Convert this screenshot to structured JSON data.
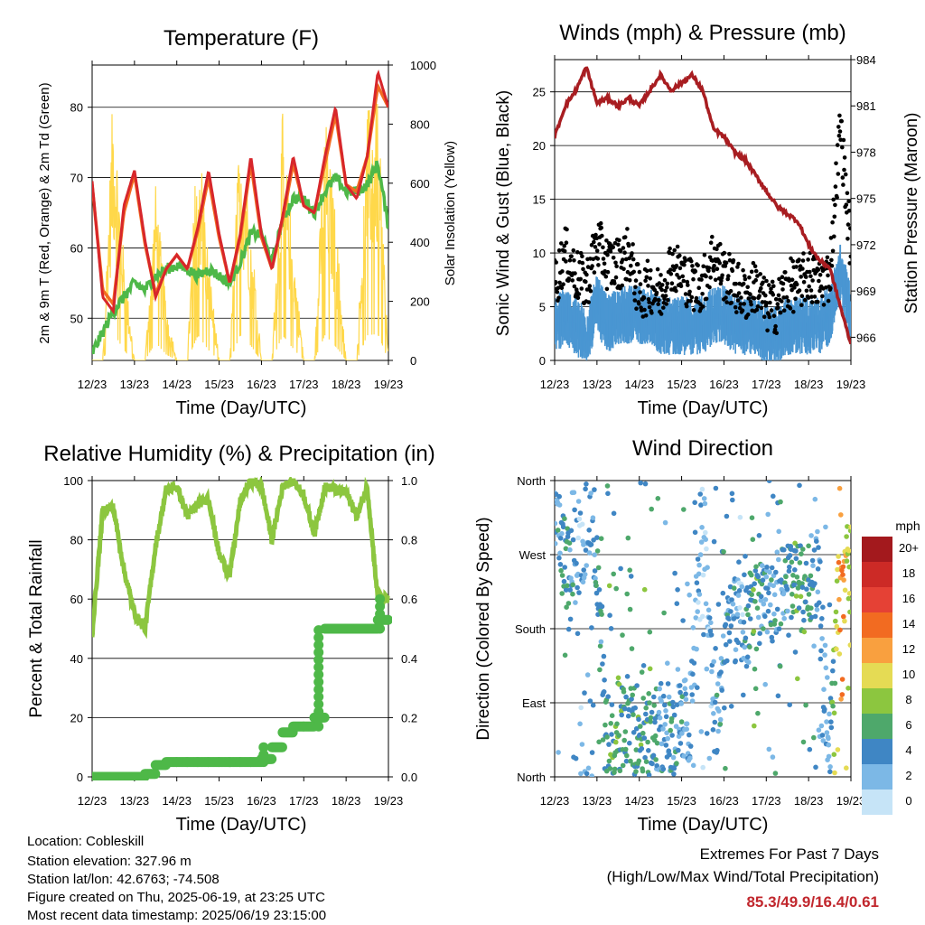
{
  "chart_data": [
    {
      "type": "line",
      "title": "Temperature (F)",
      "xlabel": "Time (Day/UTC)",
      "ylabel": "2m & 9m T (Red, Orange) & 2m Td (Green)",
      "y2label": "Solar Insolation (Yellow)",
      "ylim": [
        44,
        86
      ],
      "y2lim": [
        0,
        1000
      ],
      "yticks": [
        50,
        60,
        70,
        80
      ],
      "y2ticks": [
        0,
        200,
        400,
        600,
        800,
        1000
      ],
      "grid": true,
      "categories": [
        "12/23",
        "13/23",
        "14/23",
        "15/23",
        "16/23",
        "17/23",
        "18/23",
        "19/23"
      ],
      "x": [
        12.0,
        12.25,
        12.5,
        12.75,
        13.0,
        13.25,
        13.5,
        13.75,
        14.0,
        14.25,
        14.5,
        14.75,
        15.0,
        15.25,
        15.5,
        15.75,
        16.0,
        16.25,
        16.5,
        16.75,
        17.0,
        17.25,
        17.5,
        17.75,
        18.0,
        18.25,
        18.5,
        18.75,
        19.0
      ],
      "series": [
        {
          "name": "2m T",
          "color": "#d7262b",
          "axis": "y",
          "values": [
            69.5,
            53.0,
            51.0,
            66.0,
            71.0,
            61.0,
            53.0,
            57.0,
            59.0,
            57.0,
            63.0,
            71.0,
            62.0,
            55.0,
            62.0,
            73.0,
            62.0,
            57.0,
            64.5,
            73.0,
            66.0,
            65.0,
            73.0,
            80.0,
            69.0,
            67.0,
            73.0,
            85.0,
            80.0
          ]
        },
        {
          "name": "9m T",
          "color": "#f26b21",
          "axis": "y",
          "values": [
            69.0,
            54.0,
            52.0,
            65.0,
            70.5,
            60.5,
            53.5,
            57.0,
            59.0,
            57.0,
            62.5,
            70.0,
            61.5,
            55.0,
            61.5,
            72.0,
            61.5,
            57.0,
            64.0,
            72.0,
            66.0,
            65.0,
            72.0,
            79.0,
            69.0,
            68.0,
            73.0,
            83.0,
            80.0
          ]
        },
        {
          "name": "2m Td",
          "color": "#4eb848",
          "axis": "y",
          "values": [
            45.0,
            48.0,
            51.0,
            53.0,
            55.0,
            54.0,
            56.0,
            57.0,
            57.5,
            57.0,
            56.0,
            57.0,
            56.0,
            55.0,
            58.0,
            62.0,
            62.0,
            58.0,
            64.0,
            67.0,
            67.0,
            65.0,
            68.0,
            70.0,
            68.0,
            68.0,
            69.0,
            72.0,
            63.0
          ]
        },
        {
          "name": "Solar Insolation",
          "color": "#ffd84a",
          "axis": "y2",
          "values": [
            0,
            0,
            950,
            350,
            0,
            0,
            600,
            200,
            0,
            0,
            850,
            350,
            0,
            0,
            850,
            500,
            0,
            0,
            850,
            400,
            0,
            0,
            850,
            500,
            0,
            0,
            850,
            900,
            0
          ]
        }
      ]
    },
    {
      "type": "scatter",
      "title": "Winds (mph) & Pressure (mb)",
      "xlabel": "Time (Day/UTC)",
      "ylabel": "Sonic Wind & Gust (Blue, Black)",
      "y2label": "Station Pressure (Maroon)",
      "ylim": [
        0,
        28
      ],
      "y2lim": [
        964.5,
        984
      ],
      "yticks": [
        0,
        5,
        10,
        15,
        20,
        25
      ],
      "y2ticks": [
        966,
        969,
        972,
        975,
        978,
        981,
        984
      ],
      "grid": true,
      "categories": [
        "12/23",
        "13/23",
        "14/23",
        "15/23",
        "16/23",
        "17/23",
        "18/23",
        "19/23"
      ],
      "x": [
        12.0,
        12.25,
        12.5,
        12.75,
        13.0,
        13.25,
        13.5,
        13.75,
        14.0,
        14.25,
        14.5,
        14.75,
        15.0,
        15.25,
        15.5,
        15.75,
        16.0,
        16.25,
        16.5,
        16.75,
        17.0,
        17.25,
        17.5,
        17.75,
        18.0,
        18.25,
        18.5,
        18.75,
        19.0
      ],
      "series": [
        {
          "name": "Sonic Wind",
          "color": "#4a96d2",
          "axis": "y",
          "values": [
            3,
            4,
            3,
            2,
            5,
            3,
            4,
            4,
            4,
            4,
            3,
            3,
            3,
            3,
            3,
            4,
            4,
            3,
            3,
            3,
            2,
            2,
            3,
            3,
            3,
            3,
            4,
            8,
            4
          ]
        },
        {
          "name": "Gust",
          "color": "#000000",
          "axis": "y",
          "values": [
            7,
            10,
            8,
            7,
            11,
            9,
            9,
            10,
            6,
            7,
            6,
            9,
            8,
            7,
            7,
            10,
            8,
            7,
            6,
            7,
            5,
            5,
            7,
            7,
            8,
            7,
            8,
            22,
            10
          ]
        },
        {
          "name": "Station Pressure",
          "color": "#a81d21",
          "axis": "y2",
          "values": [
            979.0,
            981.0,
            982.0,
            983.5,
            981.2,
            981.5,
            981.0,
            981.5,
            981.0,
            982.0,
            983.0,
            982.0,
            982.5,
            983.0,
            982.0,
            979.5,
            979.0,
            978.0,
            977.5,
            976.5,
            975.5,
            974.5,
            974.0,
            973.5,
            972.0,
            971.0,
            970.5,
            968.0,
            965.5
          ]
        }
      ]
    },
    {
      "type": "line",
      "title": "Relative Humidity (%) & Precipitation (in)",
      "xlabel": "Time (Day/UTC)",
      "ylabel": "Percent & Total Rainfall",
      "ylim": [
        0,
        100
      ],
      "y2lim": [
        0,
        1
      ],
      "yticks": [
        0,
        20,
        40,
        60,
        80,
        100
      ],
      "y2ticks": [
        "0.0",
        "0.2",
        "0.4",
        "0.6",
        "0.8",
        "1.0"
      ],
      "grid": true,
      "categories": [
        "12/23",
        "13/23",
        "14/23",
        "15/23",
        "16/23",
        "17/23",
        "18/23",
        "19/23"
      ],
      "x": [
        12.0,
        12.25,
        12.5,
        12.75,
        13.0,
        13.25,
        13.5,
        13.75,
        14.0,
        14.25,
        14.5,
        14.75,
        15.0,
        15.25,
        15.5,
        15.75,
        16.0,
        16.25,
        16.5,
        16.75,
        17.0,
        17.25,
        17.5,
        17.75,
        18.0,
        18.25,
        18.5,
        18.75,
        19.0
      ],
      "series": [
        {
          "name": "Relative Humidity",
          "color": "#8cc63f",
          "axis": "y",
          "values": [
            48,
            90,
            91,
            70,
            55,
            50,
            78,
            97,
            98,
            88,
            92,
            94,
            75,
            68,
            93,
            100,
            98,
            80,
            98,
            100,
            95,
            82,
            98,
            97,
            96,
            88,
            98,
            60,
            60
          ]
        },
        {
          "name": "Total Precipitation",
          "color": "#4eb848",
          "axis": "y2",
          "values": [
            0,
            0,
            0,
            0,
            0,
            0.01,
            0.04,
            0.05,
            0.05,
            0.05,
            0.05,
            0.05,
            0.05,
            0.05,
            0.05,
            0.05,
            0.06,
            0.1,
            0.15,
            0.17,
            0.17,
            0.2,
            0.5,
            0.5,
            0.5,
            0.5,
            0.5,
            0.53,
            0.61
          ]
        }
      ]
    },
    {
      "type": "scatter",
      "title": "Wind Direction",
      "xlabel": "Time (Day/UTC)",
      "ylabel": "Direction (Colored By Speed)",
      "yticks": [
        "North",
        "East",
        "South",
        "West",
        "North"
      ],
      "ylim": [
        0,
        360
      ],
      "grid": true,
      "categories": [
        "12/23",
        "13/23",
        "14/23",
        "15/23",
        "16/23",
        "17/23",
        "18/23",
        "19/23"
      ],
      "colorbar": {
        "unit": "mph",
        "labels": [
          "20+",
          "18",
          "16",
          "14",
          "12",
          "10",
          "8",
          "6",
          "4",
          "2",
          "0"
        ],
        "colors": [
          "#a3191d",
          "#cc2a26",
          "#e54135",
          "#f26b21",
          "#f9a03f",
          "#e5db54",
          "#8cc63f",
          "#4ea86b",
          "#3f86c4",
          "#7cb8e6",
          "#c6e4f7"
        ]
      },
      "x": [
        12.05,
        12.3,
        12.6,
        12.9,
        13.2,
        13.5,
        13.8,
        14.2,
        14.5,
        14.8,
        15.2,
        15.5,
        15.8,
        16.1,
        16.4,
        16.7,
        17.0,
        17.3,
        17.6,
        17.9,
        18.2,
        18.5,
        18.7,
        18.8,
        18.9
      ],
      "series": [
        {
          "name": "Direction",
          "values": [
            300,
            255,
            270,
            345,
            40,
            60,
            55,
            50,
            60,
            50,
            75,
            330,
            40,
            200,
            180,
            200,
            210,
            230,
            240,
            230,
            250,
            30,
            215,
            205,
            250
          ],
          "speed": [
            4,
            6,
            3,
            5,
            6,
            7,
            6,
            7,
            5,
            5,
            4,
            3,
            4,
            5,
            3,
            7,
            4,
            5,
            6,
            7,
            4,
            4,
            12,
            16,
            10
          ]
        }
      ]
    }
  ],
  "info": {
    "location": "Location: Cobleskill",
    "elevation": "Station elevation: 327.96 m",
    "latlon": "Station lat/lon: 42.6763; -74.508",
    "created": "Figure created on Thu, 2025-06-19, at 23:25 UTC",
    "recent": "Most recent data timestamp: 2025/06/19 23:15:00"
  },
  "extremes": {
    "title": "Extremes For Past 7 Days",
    "subtitle": "(High/Low/Max Wind/Total Precipitation)",
    "values": "85.3/49.9/16.4/0.61",
    "color": "#c1272d"
  }
}
